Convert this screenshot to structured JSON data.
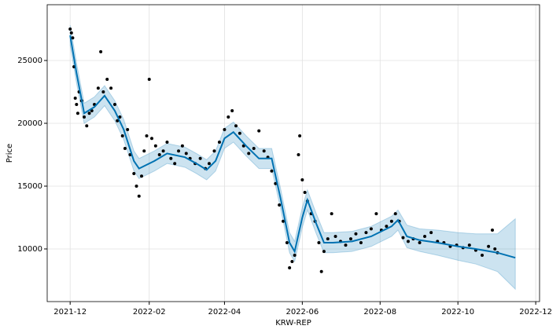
{
  "chart_data": {
    "type": "forecast",
    "xlabel": "KRW-REP",
    "ylabel": "Price",
    "xlim": [
      "2021-11-13",
      "2022-12-04"
    ],
    "ylim": [
      5810,
      29440
    ],
    "xticks": [
      "2021-12",
      "2022-02",
      "2022-04",
      "2022-06",
      "2022-08",
      "2022-10",
      "2022-12"
    ],
    "yticks": [
      10000,
      15000,
      20000,
      25000
    ],
    "grid": true,
    "observed": {
      "color": "#000000",
      "x": [
        "2021-12-01",
        "2021-12-02",
        "2021-12-03",
        "2021-12-04",
        "2021-12-05",
        "2021-12-06",
        "2021-12-07",
        "2021-12-08",
        "2021-12-10",
        "2021-12-12",
        "2021-12-14",
        "2021-12-16",
        "2021-12-18",
        "2021-12-20",
        "2021-12-23",
        "2021-12-25",
        "2021-12-27",
        "2021-12-30",
        "2022-01-02",
        "2022-01-05",
        "2022-01-07",
        "2022-01-09",
        "2022-01-11",
        "2022-01-13",
        "2022-01-15",
        "2022-01-17",
        "2022-01-20",
        "2022-01-22",
        "2022-01-24",
        "2022-01-26",
        "2022-01-28",
        "2022-01-30",
        "2022-02-01",
        "2022-02-03",
        "2022-02-06",
        "2022-02-09",
        "2022-02-12",
        "2022-02-15",
        "2022-02-18",
        "2022-02-21",
        "2022-02-24",
        "2022-02-27",
        "2022-03-02",
        "2022-03-05",
        "2022-03-09",
        "2022-03-13",
        "2022-03-17",
        "2022-03-20",
        "2022-03-24",
        "2022-03-28",
        "2022-04-01",
        "2022-04-04",
        "2022-04-07",
        "2022-04-10",
        "2022-04-13",
        "2022-04-16",
        "2022-04-20",
        "2022-04-24",
        "2022-04-28",
        "2022-05-02",
        "2022-05-05",
        "2022-05-08",
        "2022-05-11",
        "2022-05-14",
        "2022-05-17",
        "2022-05-20",
        "2022-05-22",
        "2022-05-24",
        "2022-05-26",
        "2022-05-29",
        "2022-05-30",
        "2022-06-01",
        "2022-06-03",
        "2022-06-05",
        "2022-06-08",
        "2022-06-11",
        "2022-06-14",
        "2022-06-16",
        "2022-06-18",
        "2022-06-21",
        "2022-06-24",
        "2022-06-27",
        "2022-07-01",
        "2022-07-05",
        "2022-07-09",
        "2022-07-13",
        "2022-07-17",
        "2022-07-21",
        "2022-07-25",
        "2022-07-29",
        "2022-08-02",
        "2022-08-06",
        "2022-08-10",
        "2022-08-13",
        "2022-08-16",
        "2022-08-19",
        "2022-08-23",
        "2022-08-27",
        "2022-09-01",
        "2022-09-05",
        "2022-09-10",
        "2022-09-15",
        "2022-09-20",
        "2022-09-25",
        "2022-09-30",
        "2022-10-05",
        "2022-10-10",
        "2022-10-15",
        "2022-10-20",
        "2022-10-25",
        "2022-10-28",
        "2022-10-30",
        "2022-11-01"
      ],
      "values": [
        27500,
        27200,
        26800,
        24500,
        22000,
        21500,
        20800,
        22500,
        21800,
        20500,
        19800,
        20800,
        21000,
        21500,
        22800,
        25700,
        22500,
        23500,
        22800,
        21500,
        20200,
        20500,
        19000,
        18000,
        19500,
        17500,
        16000,
        15000,
        14200,
        15800,
        17800,
        19000,
        23500,
        18800,
        18200,
        17500,
        17800,
        18500,
        17200,
        16800,
        17800,
        18200,
        17600,
        17200,
        16800,
        17200,
        16400,
        16800,
        17800,
        18500,
        19500,
        20500,
        21000,
        19800,
        19200,
        18200,
        17600,
        18000,
        19400,
        17800,
        17300,
        16200,
        15200,
        13500,
        12200,
        10500,
        8500,
        9000,
        9500,
        17500,
        19000,
        15500,
        14500,
        13800,
        12800,
        12200,
        10500,
        8200,
        9800,
        10800,
        12800,
        11000,
        10600,
        10300,
        10800,
        11200,
        10500,
        11300,
        11600,
        12800,
        11500,
        11800,
        12200,
        12800,
        12200,
        10900,
        10600,
        10800,
        10500,
        11000,
        11300,
        10600,
        10500,
        10200,
        10300,
        10100,
        10300,
        9900,
        9500,
        10200,
        11500,
        10000,
        9700
      ]
    },
    "forecast": {
      "color": "#0072B2",
      "x": [
        "2021-12-01",
        "2021-12-06",
        "2021-12-12",
        "2021-12-20",
        "2021-12-28",
        "2022-01-05",
        "2022-01-12",
        "2022-01-20",
        "2022-01-24",
        "2022-02-05",
        "2022-02-15",
        "2022-03-01",
        "2022-03-10",
        "2022-03-18",
        "2022-03-25",
        "2022-04-01",
        "2022-04-08",
        "2022-04-18",
        "2022-04-28",
        "2022-05-08",
        "2022-05-15",
        "2022-05-22",
        "2022-05-26",
        "2022-06-01",
        "2022-06-05",
        "2022-06-12",
        "2022-06-18",
        "2022-06-25",
        "2022-07-10",
        "2022-07-25",
        "2022-08-10",
        "2022-08-15",
        "2022-08-22",
        "2022-09-01",
        "2022-09-15",
        "2022-10-01",
        "2022-10-15",
        "2022-11-01",
        "2022-11-15"
      ],
      "values": [
        27000,
        24000,
        20800,
        21300,
        22200,
        21000,
        19500,
        17000,
        16400,
        17000,
        17600,
        17300,
        16800,
        16300,
        17000,
        18800,
        19300,
        18200,
        17200,
        17200,
        14000,
        10500,
        9800,
        12500,
        13900,
        12000,
        10500,
        10500,
        10600,
        11000,
        11800,
        12300,
        11000,
        10700,
        10500,
        10200,
        10000,
        9700,
        9300
      ],
      "upper": [
        27800,
        24800,
        21600,
        22100,
        23000,
        21800,
        20300,
        17800,
        17200,
        17800,
        18400,
        18100,
        17600,
        17100,
        17800,
        19600,
        20100,
        19000,
        18000,
        18000,
        14800,
        11300,
        10600,
        13300,
        14700,
        12800,
        11300,
        11300,
        11400,
        11800,
        12600,
        13100,
        11900,
        11600,
        11500,
        11300,
        11200,
        11200,
        12400
      ],
      "lower": [
        26200,
        23200,
        20000,
        20500,
        21400,
        20200,
        18700,
        16200,
        15600,
        16200,
        16800,
        16500,
        16000,
        15500,
        16200,
        18000,
        18500,
        17400,
        16400,
        16400,
        13200,
        9700,
        9000,
        11700,
        13100,
        11200,
        9700,
        9700,
        9800,
        10200,
        11000,
        11500,
        10100,
        9800,
        9500,
        9100,
        8800,
        8200,
        6800
      ]
    }
  }
}
